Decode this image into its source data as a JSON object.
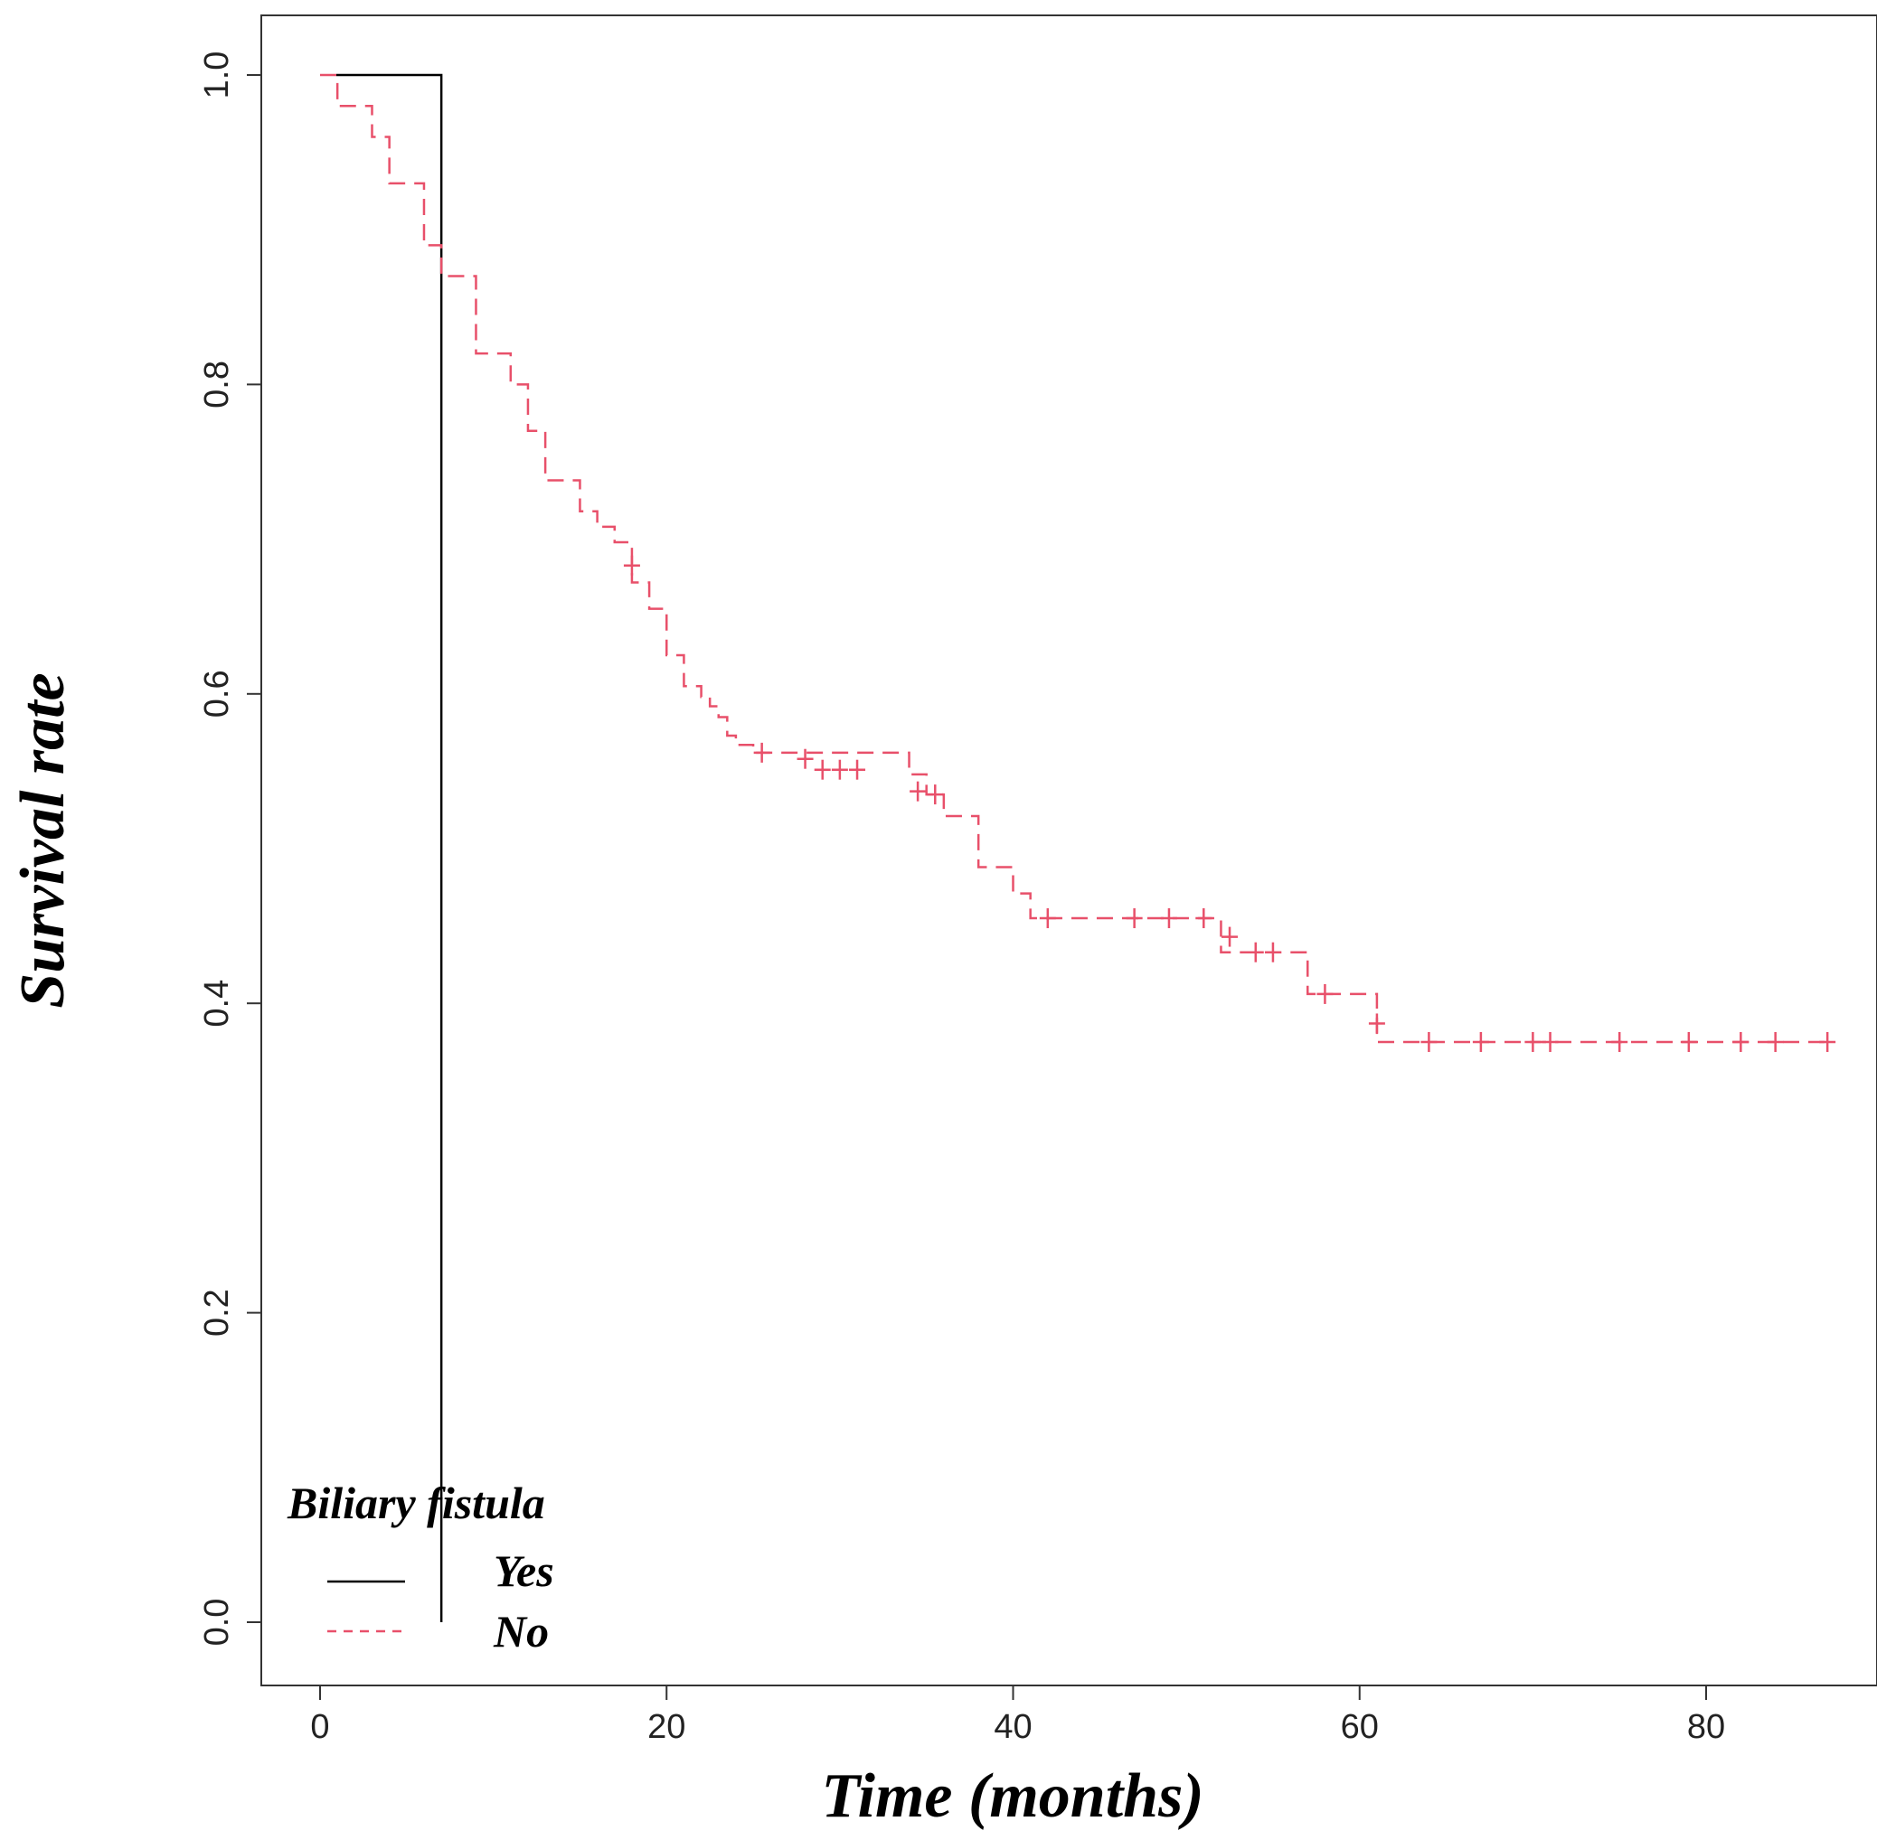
{
  "chart_data": {
    "type": "line",
    "subtype": "kaplan-meier",
    "title": "",
    "xlabel": "Time (months)",
    "ylabel": "Survival rate",
    "xlim": [
      -3.5,
      90
    ],
    "ylim": [
      -0.04,
      1.04
    ],
    "xticks": [
      0,
      20,
      40,
      60,
      80
    ],
    "yticks": [
      0.0,
      0.2,
      0.4,
      0.6,
      0.8,
      1.0
    ],
    "xtick_labels": [
      "0",
      "20",
      "40",
      "60",
      "80"
    ],
    "ytick_labels": [
      "0.0",
      "0.2",
      "0.4",
      "0.6",
      "0.8",
      "1.0"
    ],
    "grid": false,
    "legend": {
      "title": "Biliary fistula",
      "position": "bottom-left",
      "entries": [
        {
          "label": "Yes",
          "color": "#000000",
          "style": "solid"
        },
        {
          "label": "No",
          "color": "#e8506a",
          "style": "dashed"
        }
      ]
    },
    "series": [
      {
        "name": "Yes",
        "color": "#000000",
        "style": "solid",
        "x": [
          0,
          7
        ],
        "y": [
          1.0,
          0.0
        ],
        "censored": []
      },
      {
        "name": "No",
        "color": "#e8506a",
        "style": "dashed",
        "x": [
          0,
          1,
          3,
          4,
          6,
          7,
          9,
          11,
          12,
          13,
          15,
          16,
          17,
          18,
          19,
          20,
          21,
          22,
          22.5,
          23,
          23.5,
          24,
          25,
          34,
          35,
          36,
          38,
          40,
          41,
          52,
          57,
          61
        ],
        "y": [
          1.0,
          0.98,
          0.96,
          0.93,
          0.89,
          0.87,
          0.82,
          0.8,
          0.77,
          0.738,
          0.718,
          0.708,
          0.698,
          0.672,
          0.655,
          0.625,
          0.605,
          0.598,
          0.592,
          0.585,
          0.573,
          0.567,
          0.562,
          0.548,
          0.535,
          0.521,
          0.488,
          0.471,
          0.455,
          0.433,
          0.406,
          0.375
        ],
        "censored": [
          {
            "x": 18,
            "y": 0.683
          },
          {
            "x": 25.5,
            "y": 0.562
          },
          {
            "x": 28,
            "y": 0.558
          },
          {
            "x": 29,
            "y": 0.551
          },
          {
            "x": 30,
            "y": 0.551
          },
          {
            "x": 31,
            "y": 0.551
          },
          {
            "x": 34.5,
            "y": 0.537
          },
          {
            "x": 35.5,
            "y": 0.535
          },
          {
            "x": 42,
            "y": 0.455
          },
          {
            "x": 47,
            "y": 0.455
          },
          {
            "x": 49,
            "y": 0.455
          },
          {
            "x": 51,
            "y": 0.455
          },
          {
            "x": 52.5,
            "y": 0.443
          },
          {
            "x": 54,
            "y": 0.433
          },
          {
            "x": 55,
            "y": 0.433
          },
          {
            "x": 58,
            "y": 0.406
          },
          {
            "x": 61,
            "y": 0.387
          },
          {
            "x": 64,
            "y": 0.375
          },
          {
            "x": 67,
            "y": 0.375
          },
          {
            "x": 70,
            "y": 0.375
          },
          {
            "x": 71,
            "y": 0.375
          },
          {
            "x": 75,
            "y": 0.375
          },
          {
            "x": 79,
            "y": 0.375
          },
          {
            "x": 82,
            "y": 0.375
          },
          {
            "x": 84,
            "y": 0.375
          },
          {
            "x": 87,
            "y": 0.375
          }
        ],
        "end_x": 87
      }
    ]
  }
}
